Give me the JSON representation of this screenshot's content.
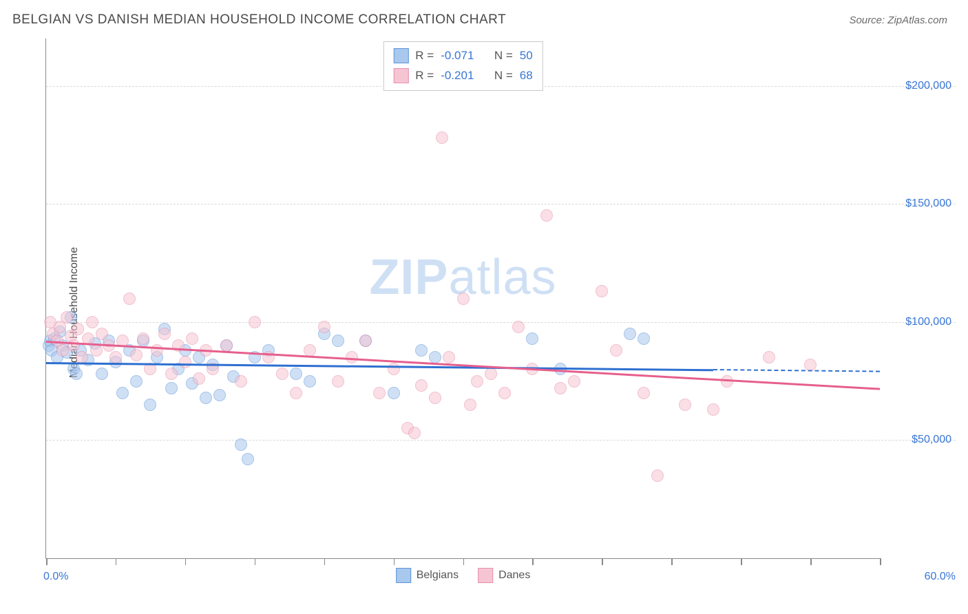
{
  "title": "BELGIAN VS DANISH MEDIAN HOUSEHOLD INCOME CORRELATION CHART",
  "source": "Source: ZipAtlas.com",
  "ylabel": "Median Household Income",
  "watermark_a": "ZIP",
  "watermark_b": "atlas",
  "chart": {
    "type": "scatter",
    "xlim": [
      0,
      60
    ],
    "ylim": [
      0,
      220000
    ],
    "x_tick_start_label": "0.0%",
    "x_tick_end_label": "60.0%",
    "x_ticks": [
      0,
      5,
      10,
      15,
      20,
      25,
      30,
      35,
      40,
      45,
      50,
      55,
      60
    ],
    "y_gridlines": [
      {
        "v": 50000,
        "label": "$50,000"
      },
      {
        "v": 100000,
        "label": "$100,000"
      },
      {
        "v": 150000,
        "label": "$150,000"
      },
      {
        "v": 200000,
        "label": "$200,000"
      }
    ],
    "background_color": "#ffffff",
    "grid_color": "#d8d8d8",
    "axis_color": "#888888",
    "tick_label_color": "#3876d6",
    "marker_radius": 9,
    "marker_opacity": 0.55,
    "series": [
      {
        "name": "Belgians",
        "fill": "#a8c8ee",
        "stroke": "#5f94d8",
        "line_color": "#2e6fd0",
        "trend": {
          "x1": 0,
          "y1": 83000,
          "x2": 48,
          "y2": 80000,
          "dash_to_x": 60
        },
        "stats": {
          "R": "-0.071",
          "N": "50"
        },
        "points": [
          [
            0.2,
            90000
          ],
          [
            0.3,
            92000
          ],
          [
            0.4,
            88000
          ],
          [
            0.6,
            93000
          ],
          [
            0.8,
            85000
          ],
          [
            1.0,
            96000
          ],
          [
            1.2,
            90000
          ],
          [
            1.5,
            87000
          ],
          [
            1.8,
            102000
          ],
          [
            2.0,
            80000
          ],
          [
            2.2,
            78000
          ],
          [
            2.5,
            88000
          ],
          [
            3.0,
            84000
          ],
          [
            3.5,
            91000
          ],
          [
            4.0,
            78000
          ],
          [
            4.5,
            92000
          ],
          [
            5.0,
            83000
          ],
          [
            5.5,
            70000
          ],
          [
            6.0,
            88000
          ],
          [
            6.5,
            75000
          ],
          [
            7.0,
            92000
          ],
          [
            7.5,
            65000
          ],
          [
            8.0,
            85000
          ],
          [
            8.5,
            97000
          ],
          [
            9.0,
            72000
          ],
          [
            9.5,
            80000
          ],
          [
            10,
            88000
          ],
          [
            10.5,
            74000
          ],
          [
            11,
            85000
          ],
          [
            11.5,
            68000
          ],
          [
            12,
            82000
          ],
          [
            12.5,
            69000
          ],
          [
            13,
            90000
          ],
          [
            13.5,
            77000
          ],
          [
            14,
            48000
          ],
          [
            14.5,
            42000
          ],
          [
            15,
            85000
          ],
          [
            16,
            88000
          ],
          [
            18,
            78000
          ],
          [
            19,
            75000
          ],
          [
            20,
            95000
          ],
          [
            21,
            92000
          ],
          [
            23,
            92000
          ],
          [
            25,
            70000
          ],
          [
            27,
            88000
          ],
          [
            28,
            85000
          ],
          [
            35,
            93000
          ],
          [
            37,
            80000
          ],
          [
            42,
            95000
          ],
          [
            43,
            93000
          ]
        ]
      },
      {
        "name": "Danes",
        "fill": "#f6c5d3",
        "stroke": "#e78fab",
        "line_color": "#e65f8d",
        "trend": {
          "x1": 0,
          "y1": 92000,
          "x2": 60,
          "y2": 72000
        },
        "stats": {
          "R": "-0.201",
          "N": "68"
        },
        "points": [
          [
            0.3,
            100000
          ],
          [
            0.5,
            95000
          ],
          [
            0.8,
            92000
          ],
          [
            1.0,
            98000
          ],
          [
            1.2,
            88000
          ],
          [
            1.5,
            102000
          ],
          [
            1.8,
            94000
          ],
          [
            2.0,
            90000
          ],
          [
            2.3,
            97000
          ],
          [
            2.6,
            85000
          ],
          [
            3.0,
            93000
          ],
          [
            3.3,
            100000
          ],
          [
            3.6,
            88000
          ],
          [
            4.0,
            95000
          ],
          [
            4.5,
            90000
          ],
          [
            5.0,
            85000
          ],
          [
            5.5,
            92000
          ],
          [
            6.0,
            110000
          ],
          [
            6.5,
            86000
          ],
          [
            7.0,
            93000
          ],
          [
            7.5,
            80000
          ],
          [
            8.0,
            88000
          ],
          [
            8.5,
            95000
          ],
          [
            9.0,
            78000
          ],
          [
            9.5,
            90000
          ],
          [
            10,
            83000
          ],
          [
            10.5,
            93000
          ],
          [
            11,
            76000
          ],
          [
            11.5,
            88000
          ],
          [
            12,
            80000
          ],
          [
            13,
            90000
          ],
          [
            14,
            75000
          ],
          [
            15,
            100000
          ],
          [
            16,
            85000
          ],
          [
            17,
            78000
          ],
          [
            18,
            70000
          ],
          [
            19,
            88000
          ],
          [
            20,
            98000
          ],
          [
            21,
            75000
          ],
          [
            22,
            85000
          ],
          [
            23,
            92000
          ],
          [
            24,
            70000
          ],
          [
            25,
            80000
          ],
          [
            26,
            55000
          ],
          [
            26.5,
            53000
          ],
          [
            27,
            73000
          ],
          [
            28,
            68000
          ],
          [
            28.5,
            178000
          ],
          [
            29,
            85000
          ],
          [
            30,
            110000
          ],
          [
            30.5,
            65000
          ],
          [
            31,
            75000
          ],
          [
            32,
            78000
          ],
          [
            33,
            70000
          ],
          [
            34,
            98000
          ],
          [
            35,
            80000
          ],
          [
            36,
            145000
          ],
          [
            37,
            72000
          ],
          [
            38,
            75000
          ],
          [
            40,
            113000
          ],
          [
            41,
            88000
          ],
          [
            43,
            70000
          ],
          [
            44,
            35000
          ],
          [
            46,
            65000
          ],
          [
            48,
            63000
          ],
          [
            49,
            75000
          ],
          [
            52,
            85000
          ],
          [
            55,
            82000
          ]
        ]
      }
    ],
    "legend_top_labels": {
      "R": "R =",
      "N": "N ="
    },
    "legend_bottom": [
      {
        "label": "Belgians",
        "fill": "#a8c8ee",
        "stroke": "#5f94d8"
      },
      {
        "label": "Danes",
        "fill": "#f6c5d3",
        "stroke": "#e78fab"
      }
    ]
  }
}
